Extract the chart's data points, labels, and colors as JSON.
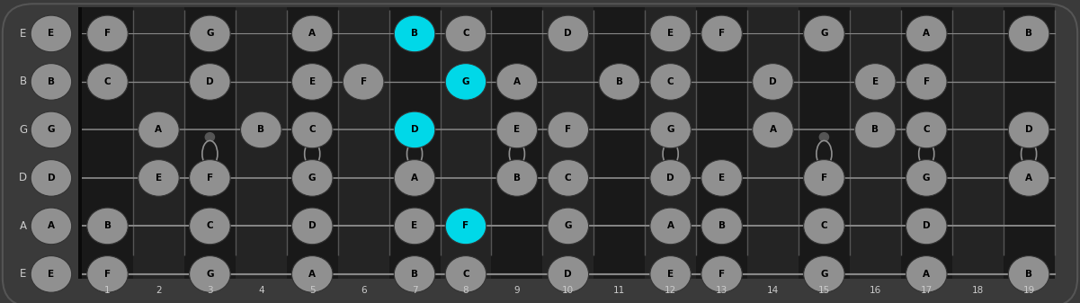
{
  "num_frets": 19,
  "num_strings": 6,
  "string_names": [
    "E",
    "B",
    "G",
    "D",
    "A",
    "E"
  ],
  "open_notes": [
    "E",
    "B",
    "G",
    "D",
    "A",
    "E"
  ],
  "bg_color": "#3a3a3a",
  "dark_fret_color": "#191919",
  "light_fret_color": "#242424",
  "nut_color": "#0a0a0a",
  "note_color_normal": "#909090",
  "note_color_highlight": "#00d8e8",
  "note_text_color": "#000000",
  "string_label_color": "#cccccc",
  "fret_number_color": "#cccccc",
  "fret_line_color": "#555555",
  "string_line_color": "#888888",
  "dot_color": "#555555",
  "double_circle_frets": [
    3,
    5,
    9,
    15,
    17
  ],
  "single_circle_frets": [
    7,
    12
  ],
  "barre_frets": [
    3,
    5,
    7,
    9,
    12,
    15,
    17,
    19
  ],
  "highlighted_notes": [
    {
      "string": 0,
      "fret": 7,
      "note": "B"
    },
    {
      "string": 1,
      "fret": 8,
      "note": "G"
    },
    {
      "string": 2,
      "fret": 7,
      "note": "D"
    },
    {
      "string": 4,
      "fret": 8,
      "note": "F"
    }
  ],
  "notes_by_fret": {
    "1": [
      "F",
      "C",
      "",
      "",
      "B",
      "F"
    ],
    "2": [
      "",
      "",
      "A",
      "E",
      "",
      ""
    ],
    "3": [
      "G",
      "D",
      "",
      "F",
      "C",
      "G"
    ],
    "4": [
      "",
      "",
      "B",
      "",
      "",
      ""
    ],
    "5": [
      "A",
      "E",
      "C",
      "G",
      "D",
      "A"
    ],
    "6": [
      "",
      "F",
      "",
      "",
      "",
      ""
    ],
    "7": [
      "B",
      "",
      "D",
      "A",
      "E",
      "B"
    ],
    "8": [
      "C",
      "G",
      "",
      "",
      "F",
      "C"
    ],
    "9": [
      "",
      "A",
      "E",
      "B",
      "",
      ""
    ],
    "10": [
      "D",
      "",
      "F",
      "C",
      "G",
      "D"
    ],
    "11": [
      "",
      "B",
      "",
      "",
      "",
      ""
    ],
    "12": [
      "E",
      "C",
      "G",
      "D",
      "A",
      "E"
    ],
    "13": [
      "F",
      "",
      "",
      "E",
      "B",
      "F"
    ],
    "14": [
      "",
      "D",
      "A",
      "",
      "",
      ""
    ],
    "15": [
      "G",
      "",
      "",
      "F",
      "C",
      "G"
    ],
    "16": [
      "",
      "E",
      "B",
      "",
      "",
      ""
    ],
    "17": [
      "A",
      "F",
      "C",
      "G",
      "D",
      "A"
    ],
    "18": [
      "",
      "",
      "",
      "",
      "",
      ""
    ],
    "19": [
      "B",
      "",
      "D",
      "A",
      "",
      "B"
    ]
  }
}
